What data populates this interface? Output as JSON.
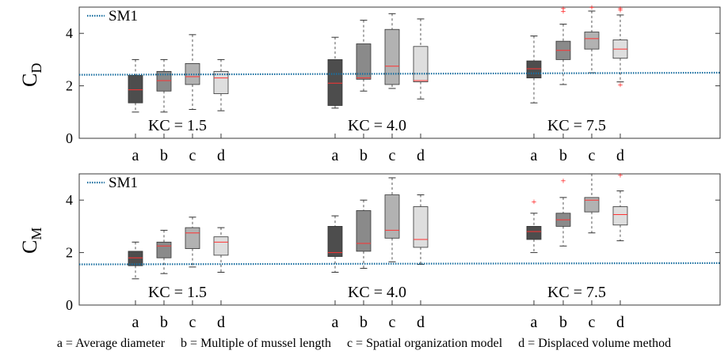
{
  "chart_data": [
    {
      "type": "box",
      "ylabel_main": "C",
      "ylabel_sub": "D",
      "ylim": [
        0,
        5
      ],
      "yticks": [
        0,
        2,
        4
      ],
      "legend": {
        "label": "SM1",
        "placement": "top-left"
      },
      "reference_line": {
        "name": "SM1",
        "color": "#1a6fa0",
        "start": 2.42,
        "end": 2.5
      },
      "groups": [
        {
          "label": "KC = 1.5",
          "categories": [
            "a",
            "b",
            "c",
            "d"
          ],
          "boxes": [
            {
              "min": 1.0,
              "q1": 1.35,
              "median": 1.85,
              "q3": 2.4,
              "max": 3.0,
              "outliers": []
            },
            {
              "min": 1.0,
              "q1": 1.8,
              "median": 2.2,
              "q3": 2.55,
              "max": 3.0,
              "outliers": []
            },
            {
              "min": 1.1,
              "q1": 2.05,
              "median": 2.35,
              "q3": 2.85,
              "max": 3.95,
              "outliers": []
            },
            {
              "min": 1.05,
              "q1": 1.7,
              "median": 2.3,
              "q3": 2.55,
              "max": 3.0,
              "outliers": []
            }
          ]
        },
        {
          "label": "KC = 4.0",
          "categories": [
            "a",
            "b",
            "c",
            "d"
          ],
          "boxes": [
            {
              "min": 1.15,
              "q1": 1.25,
              "median": 2.1,
              "q3": 3.0,
              "max": 3.85,
              "outliers": []
            },
            {
              "min": 1.8,
              "q1": 2.25,
              "median": 2.3,
              "q3": 3.6,
              "max": 4.5,
              "outliers": []
            },
            {
              "min": 1.9,
              "q1": 2.05,
              "median": 2.75,
              "q3": 4.15,
              "max": 4.75,
              "outliers": []
            },
            {
              "min": 1.5,
              "q1": 2.15,
              "median": 2.2,
              "q3": 3.5,
              "max": 4.55,
              "outliers": []
            }
          ]
        },
        {
          "label": "KC = 7.5",
          "categories": [
            "a",
            "b",
            "c",
            "d"
          ],
          "boxes": [
            {
              "min": 1.35,
              "q1": 2.3,
              "median": 2.65,
              "q3": 2.95,
              "max": 3.9,
              "outliers": []
            },
            {
              "min": 2.05,
              "q1": 3.0,
              "median": 3.35,
              "q3": 3.7,
              "max": 4.35,
              "outliers": [
                4.85,
                4.95
              ]
            },
            {
              "min": 2.5,
              "q1": 3.4,
              "median": 3.8,
              "q3": 4.05,
              "max": 4.85,
              "outliers": [
                5.0
              ]
            },
            {
              "min": 2.15,
              "q1": 3.05,
              "median": 3.4,
              "q3": 3.75,
              "max": 4.7,
              "outliers": [
                4.9,
                4.95,
                2.05
              ]
            }
          ]
        }
      ]
    },
    {
      "type": "box",
      "ylabel_main": "C",
      "ylabel_sub": "M",
      "ylim": [
        0,
        5
      ],
      "yticks": [
        0,
        2,
        4
      ],
      "legend": {
        "label": "SM1",
        "placement": "top-left"
      },
      "reference_line": {
        "name": "SM1",
        "color": "#1a6fa0",
        "start": 1.55,
        "end": 1.6
      },
      "groups": [
        {
          "label": "KC = 1.5",
          "categories": [
            "a",
            "b",
            "c",
            "d"
          ],
          "boxes": [
            {
              "min": 1.0,
              "q1": 1.5,
              "median": 1.8,
              "q3": 2.05,
              "max": 2.4,
              "outliers": []
            },
            {
              "min": 1.2,
              "q1": 1.8,
              "median": 2.25,
              "q3": 2.4,
              "max": 2.85,
              "outliers": []
            },
            {
              "min": 1.45,
              "q1": 2.15,
              "median": 2.75,
              "q3": 2.95,
              "max": 3.35,
              "outliers": []
            },
            {
              "min": 1.25,
              "q1": 1.9,
              "median": 2.4,
              "q3": 2.6,
              "max": 2.95,
              "outliers": []
            }
          ]
        },
        {
          "label": "KC = 4.0",
          "categories": [
            "a",
            "b",
            "c",
            "d"
          ],
          "boxes": [
            {
              "min": 1.25,
              "q1": 1.85,
              "median": 2.0,
              "q3": 3.0,
              "max": 3.4,
              "outliers": []
            },
            {
              "min": 1.4,
              "q1": 2.05,
              "median": 2.35,
              "q3": 3.6,
              "max": 4.0,
              "outliers": []
            },
            {
              "min": 1.65,
              "q1": 2.55,
              "median": 2.85,
              "q3": 4.2,
              "max": 4.85,
              "outliers": []
            },
            {
              "min": 1.55,
              "q1": 2.2,
              "median": 2.5,
              "q3": 3.75,
              "max": 4.2,
              "outliers": []
            }
          ]
        },
        {
          "label": "KC = 7.5",
          "categories": [
            "a",
            "b",
            "c",
            "d"
          ],
          "boxes": [
            {
              "min": 2.0,
              "q1": 2.5,
              "median": 2.8,
              "q3": 3.0,
              "max": 3.5,
              "outliers": [
                3.95
              ]
            },
            {
              "min": 2.25,
              "q1": 3.0,
              "median": 3.25,
              "q3": 3.5,
              "max": 4.1,
              "outliers": [
                4.75
              ]
            },
            {
              "min": 2.75,
              "q1": 3.55,
              "median": 4.0,
              "q3": 4.1,
              "max": 5.0,
              "outliers": []
            },
            {
              "min": 2.45,
              "q1": 3.05,
              "median": 3.45,
              "q3": 3.75,
              "max": 4.35,
              "outliers": [
                4.95
              ]
            }
          ]
        }
      ]
    }
  ],
  "box_fills": [
    "#4d4d4d",
    "#8a8a8a",
    "#b2b2b2",
    "#dedede"
  ],
  "median_color": "#ff3333",
  "outlier_color": "#ff0000",
  "caption": {
    "a": "a = Average diameter",
    "b": "b = Multiple of mussel length",
    "c": "c = Spatial organization model",
    "d": "d = Displaced volume method"
  }
}
